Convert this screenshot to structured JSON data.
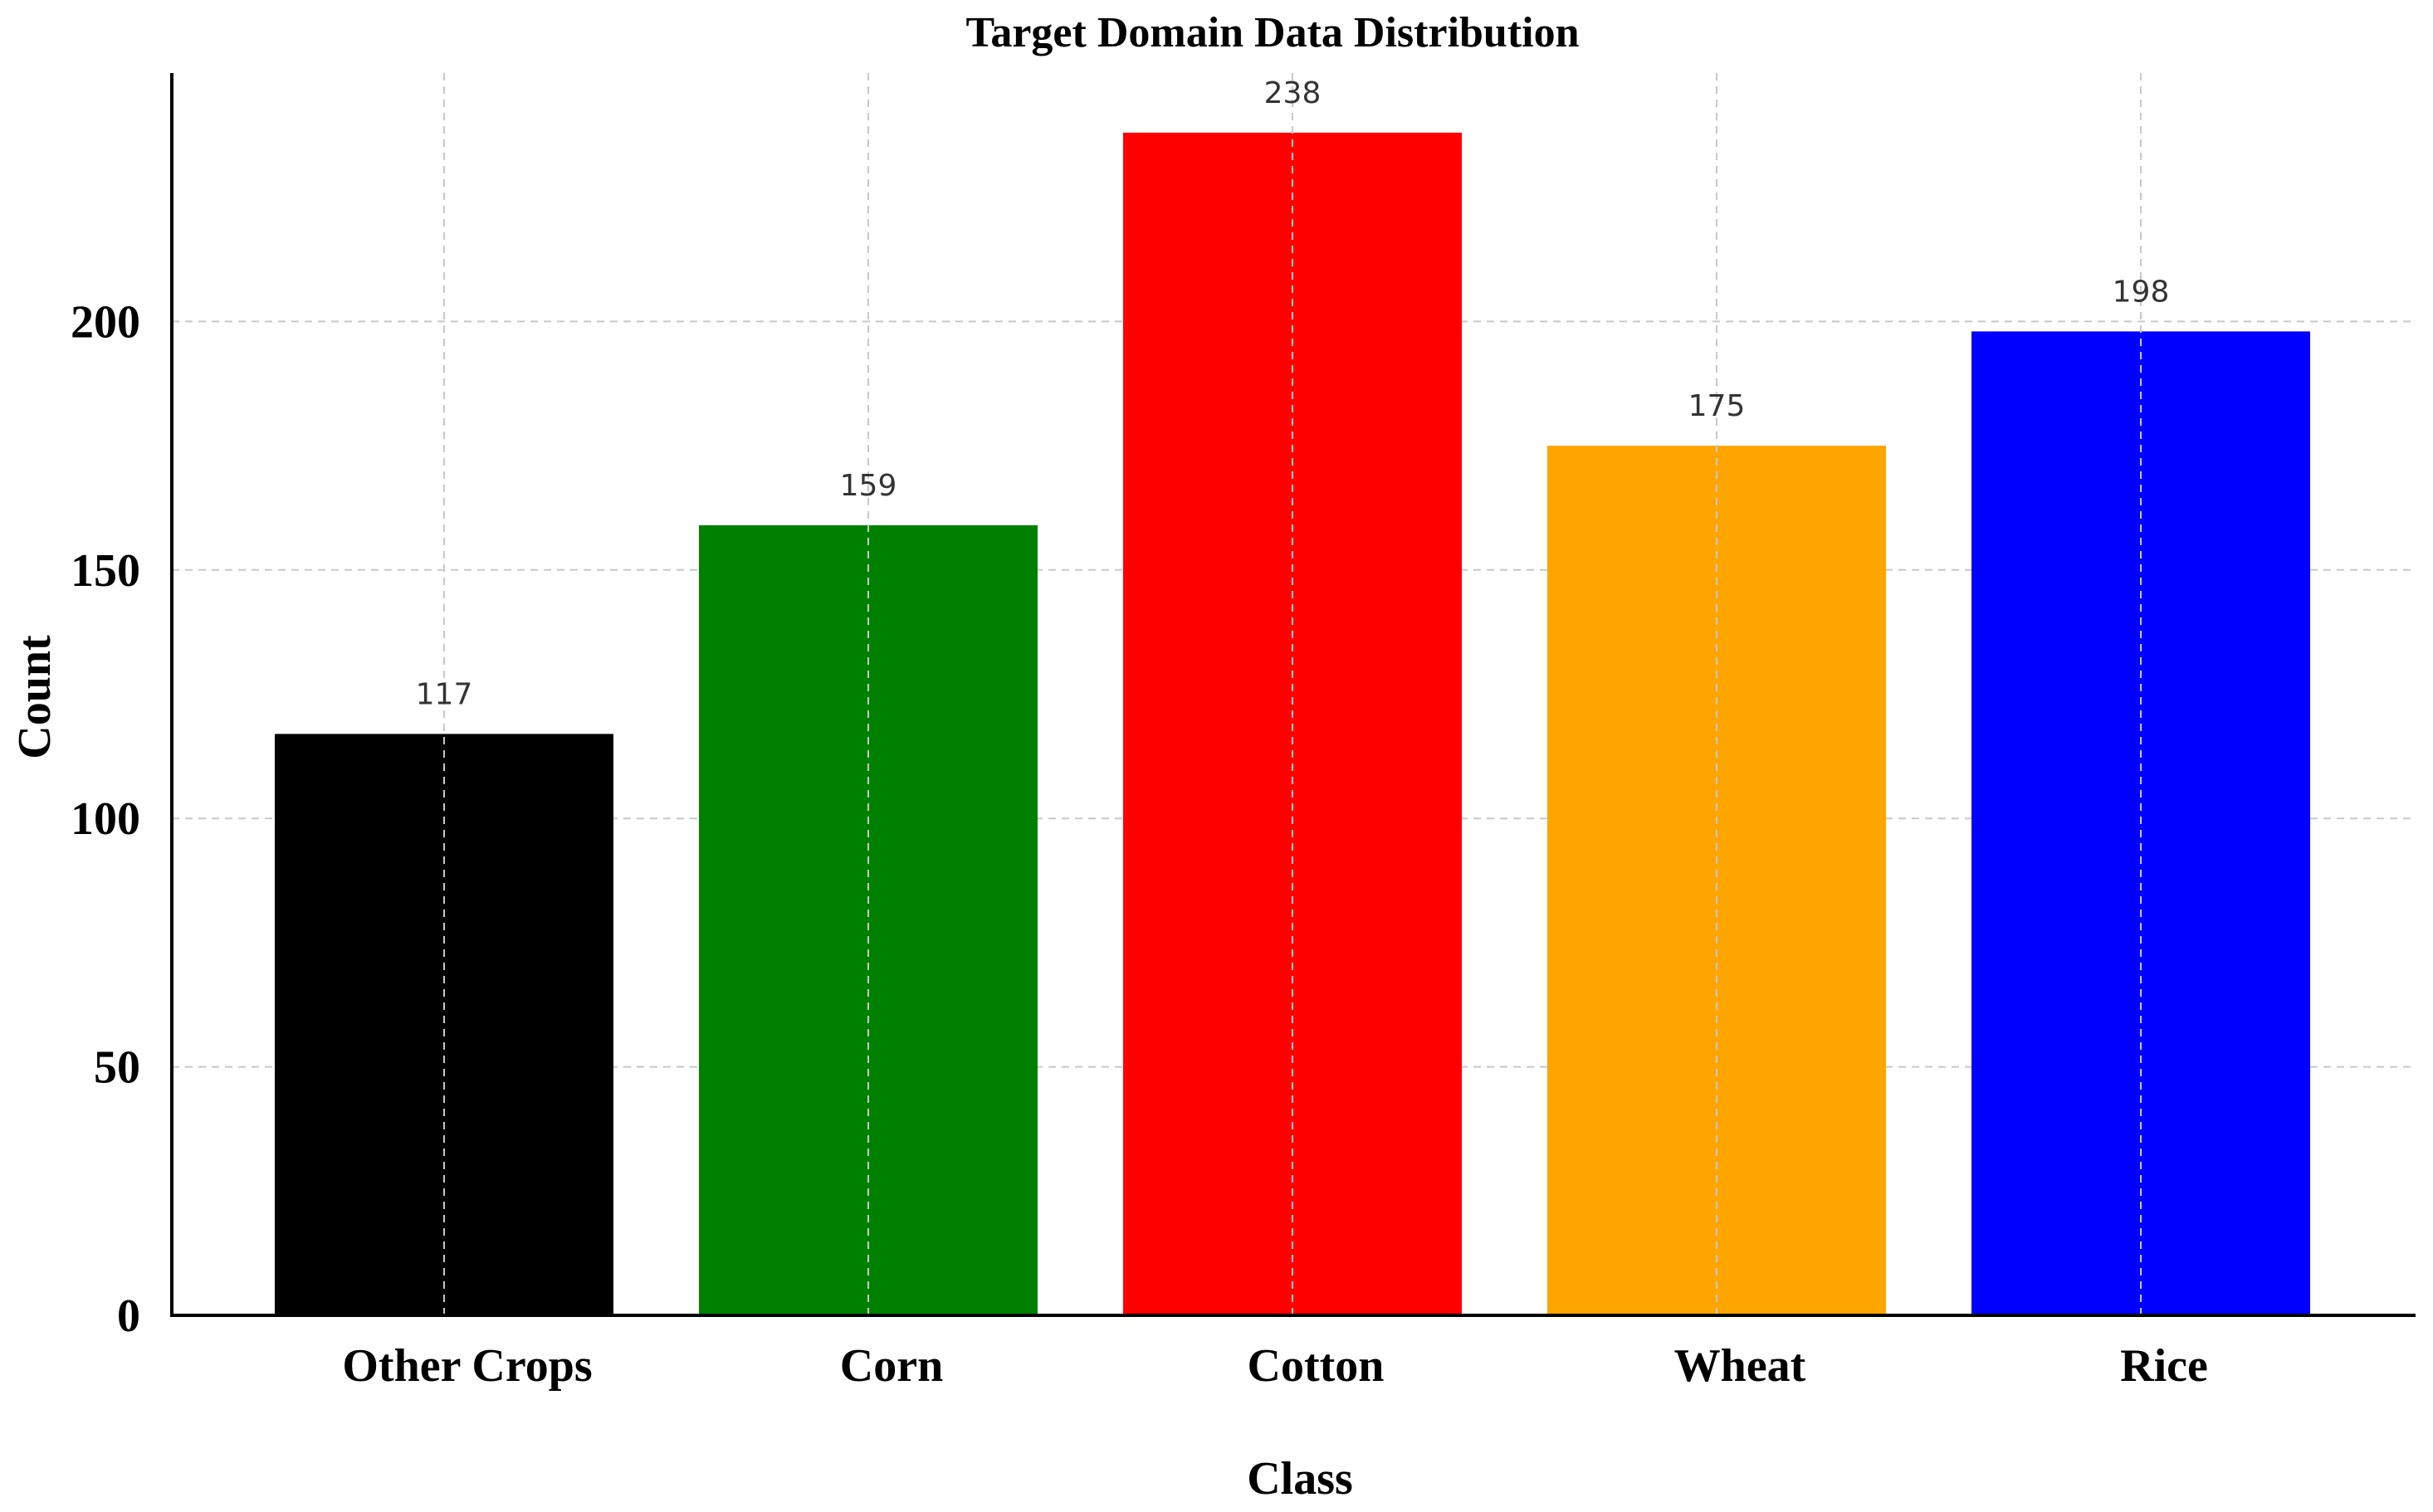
{
  "chart_data": {
    "type": "bar",
    "title": "Target Domain Data Distribution",
    "xlabel": "Class",
    "ylabel": "Count",
    "categories": [
      "Other Crops",
      "Corn",
      "Cotton",
      "Wheat",
      "Rice"
    ],
    "values": [
      117,
      159,
      238,
      175,
      198
    ],
    "colors": [
      "#000000",
      "#008000",
      "#ff0000",
      "#ffa500",
      "#0000ff"
    ],
    "ylim": [
      0,
      250
    ],
    "yticks": [
      0,
      50,
      100,
      150,
      200
    ],
    "grid": true,
    "data_labels": true
  }
}
